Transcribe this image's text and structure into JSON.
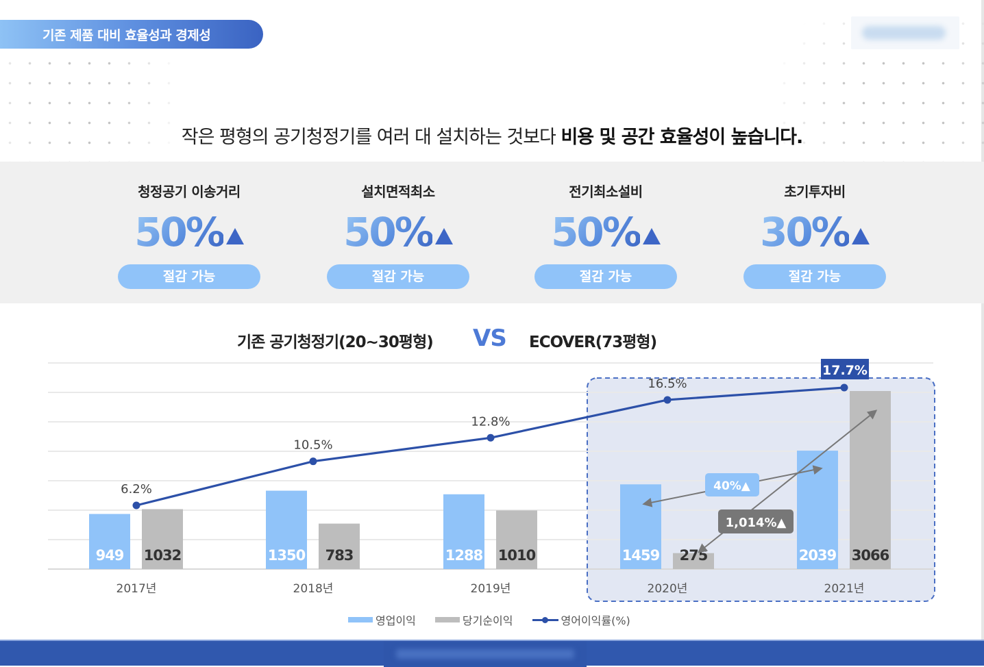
{
  "header": {
    "section_title": "기존 제품 대비 효율성과 경제성",
    "logo": "blurred-logo"
  },
  "headline": {
    "normal": "작은 평형의 공기청정기를 여러 대 설치하는 것보다 ",
    "bold": "비용 및 공간 효율성이 높습니다."
  },
  "stats": [
    {
      "label": "청정공기 이송거리",
      "value": "50%",
      "badge": "절감 가능"
    },
    {
      "label": "설치면적최소",
      "value": "50%",
      "badge": "절감 가능"
    },
    {
      "label": "전기최소설비",
      "value": "50%",
      "badge": "절감 가능"
    },
    {
      "label": "초기투자비",
      "value": "30%",
      "badge": "절감 가능"
    }
  ],
  "comparison": {
    "left": "기존 공기청정기(20~30평형)",
    "vs": "VS",
    "right": "ECOVER(73평형)"
  },
  "colors": {
    "operating_profit": "#90c3f9",
    "net_income": "#bdbdbd",
    "margin_line": "#2c50a8",
    "accent_dark": "#3058ae",
    "highlight_bg": "#e2e7f3"
  },
  "annotations": {
    "operating_growth": "40%▲",
    "net_growth": "1,014%▲",
    "highlight_label": "17.7%"
  },
  "legend": {
    "operating": "영업이익",
    "net": "당기순이익",
    "margin": "영어이익률(%)"
  },
  "chart_data": {
    "type": "bar",
    "title": "기존 공기청정기(20~30평형) VS ECOVER(73평형)",
    "categories": [
      "2017년",
      "2018년",
      "2019년",
      "2020년",
      "2021년"
    ],
    "series": [
      {
        "name": "영업이익",
        "type": "bar",
        "color": "#90c3f9",
        "values": [
          949,
          1350,
          1288,
          1459,
          2039
        ]
      },
      {
        "name": "당기순이익",
        "type": "bar",
        "color": "#bdbdbd",
        "values": [
          1032,
          783,
          1010,
          275,
          3066
        ]
      },
      {
        "name": "영어이익률(%)",
        "type": "line",
        "color": "#2c50a8",
        "values": [
          6.2,
          10.5,
          12.8,
          16.5,
          17.7
        ],
        "labels": [
          "6.2%",
          "10.5%",
          "12.8%",
          "16.5%",
          "17.7%"
        ]
      }
    ],
    "annotations": [
      {
        "text": "40%▲",
        "from": "2020년 영업이익",
        "to": "2021년 영업이익"
      },
      {
        "text": "1,014%▲",
        "from": "2020년 당기순이익",
        "to": "2021년 당기순이익"
      }
    ],
    "highlight_range": [
      "2020년",
      "2021년"
    ],
    "xlabel": "",
    "ylabel": "",
    "grid": true,
    "legend_position": "bottom"
  }
}
